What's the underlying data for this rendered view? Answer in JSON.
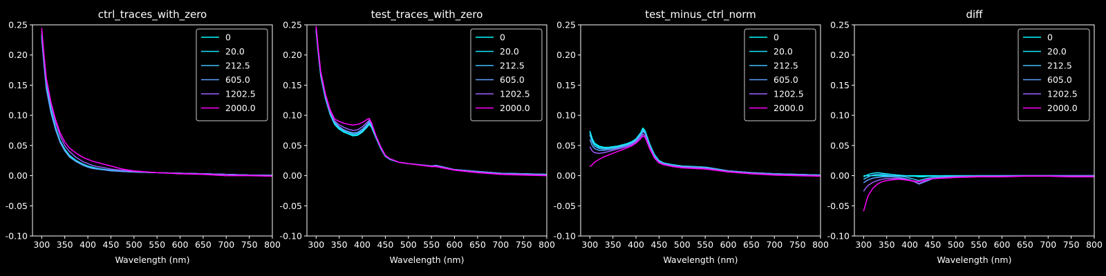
{
  "figure": {
    "background": "#000000"
  },
  "chart_data": [
    {
      "type": "line",
      "title": "ctrl_traces_with_zero",
      "xlabel": "Wavelength (nm)",
      "ylabel": "",
      "xlim": [
        280,
        800
      ],
      "ylim": [
        -0.1,
        0.25
      ],
      "xticks": [
        300,
        350,
        400,
        450,
        500,
        550,
        600,
        650,
        700,
        750,
        800
      ],
      "yticks": [
        -0.1,
        -0.05,
        0.0,
        0.05,
        0.1,
        0.15,
        0.2,
        0.25
      ],
      "legend_position": "top-right",
      "x": [
        300,
        305,
        310,
        320,
        330,
        340,
        350,
        360,
        375,
        390,
        400,
        410,
        420,
        430,
        450,
        475,
        500,
        550,
        600,
        650,
        700,
        750,
        800
      ],
      "series": [
        {
          "name": "0",
          "color": "#00ffff",
          "values": [
            0.235,
            0.19,
            0.15,
            0.11,
            0.08,
            0.058,
            0.044,
            0.034,
            0.025,
            0.019,
            0.016,
            0.014,
            0.012,
            0.011,
            0.009,
            0.007,
            0.006,
            0.005,
            0.004,
            0.003,
            0.002,
            0.001,
            0.001
          ]
        },
        {
          "name": "20.0",
          "color": "#1ae5ff",
          "values": [
            0.232,
            0.188,
            0.148,
            0.108,
            0.079,
            0.057,
            0.043,
            0.033,
            0.024,
            0.018,
            0.015,
            0.013,
            0.012,
            0.011,
            0.009,
            0.007,
            0.006,
            0.005,
            0.004,
            0.003,
            0.002,
            0.001,
            0.001
          ]
        },
        {
          "name": "212.5",
          "color": "#40c0ff",
          "values": [
            0.23,
            0.185,
            0.146,
            0.106,
            0.077,
            0.056,
            0.042,
            0.032,
            0.024,
            0.018,
            0.015,
            0.013,
            0.011,
            0.01,
            0.009,
            0.007,
            0.006,
            0.005,
            0.004,
            0.003,
            0.002,
            0.001,
            0.001
          ]
        },
        {
          "name": "605.0",
          "color": "#60a0ff",
          "values": [
            0.228,
            0.183,
            0.144,
            0.104,
            0.076,
            0.055,
            0.041,
            0.031,
            0.023,
            0.017,
            0.014,
            0.012,
            0.011,
            0.01,
            0.008,
            0.007,
            0.006,
            0.005,
            0.004,
            0.003,
            0.002,
            0.001,
            0.001
          ]
        },
        {
          "name": "1202.5",
          "color": "#a060ff",
          "values": [
            0.24,
            0.196,
            0.158,
            0.118,
            0.088,
            0.066,
            0.05,
            0.04,
            0.03,
            0.023,
            0.02,
            0.017,
            0.015,
            0.014,
            0.011,
            0.009,
            0.007,
            0.005,
            0.004,
            0.003,
            0.002,
            0.001,
            0.0
          ]
        },
        {
          "name": "2000.0",
          "color": "#ff00ff",
          "values": [
            0.245,
            0.2,
            0.162,
            0.122,
            0.093,
            0.071,
            0.056,
            0.046,
            0.037,
            0.03,
            0.027,
            0.024,
            0.022,
            0.02,
            0.016,
            0.011,
            0.008,
            0.005,
            0.003,
            0.002,
            0.0,
            0.0,
            -0.001
          ]
        }
      ]
    },
    {
      "type": "line",
      "title": "test_traces_with_zero",
      "xlabel": "Wavelength (nm)",
      "ylabel": "",
      "xlim": [
        280,
        800
      ],
      "ylim": [
        -0.1,
        0.25
      ],
      "xticks": [
        300,
        350,
        400,
        450,
        500,
        550,
        600,
        650,
        700,
        750,
        800
      ],
      "yticks": [
        -0.1,
        -0.05,
        0.0,
        0.05,
        0.1,
        0.15,
        0.2,
        0.25
      ],
      "legend_position": "top-right",
      "x": [
        300,
        305,
        310,
        320,
        330,
        340,
        350,
        360,
        370,
        380,
        390,
        400,
        410,
        415,
        420,
        430,
        440,
        450,
        460,
        480,
        500,
        550,
        560,
        600,
        650,
        700,
        750,
        800
      ],
      "series": [
        {
          "name": "0",
          "color": "#00ffff",
          "values": [
            0.24,
            0.2,
            0.165,
            0.128,
            0.102,
            0.085,
            0.077,
            0.072,
            0.069,
            0.066,
            0.067,
            0.072,
            0.08,
            0.085,
            0.08,
            0.062,
            0.045,
            0.032,
            0.027,
            0.022,
            0.02,
            0.016,
            0.017,
            0.01,
            0.007,
            0.004,
            0.003,
            0.002
          ]
        },
        {
          "name": "20.0",
          "color": "#1ae5ff",
          "values": [
            0.24,
            0.2,
            0.165,
            0.128,
            0.103,
            0.086,
            0.078,
            0.073,
            0.07,
            0.067,
            0.068,
            0.073,
            0.081,
            0.086,
            0.081,
            0.063,
            0.045,
            0.032,
            0.027,
            0.022,
            0.02,
            0.016,
            0.017,
            0.01,
            0.007,
            0.004,
            0.003,
            0.002
          ]
        },
        {
          "name": "212.5",
          "color": "#40c0ff",
          "values": [
            0.242,
            0.202,
            0.167,
            0.13,
            0.104,
            0.088,
            0.08,
            0.075,
            0.072,
            0.069,
            0.07,
            0.075,
            0.083,
            0.088,
            0.083,
            0.064,
            0.046,
            0.033,
            0.028,
            0.022,
            0.02,
            0.016,
            0.017,
            0.01,
            0.007,
            0.004,
            0.003,
            0.002
          ]
        },
        {
          "name": "605.0",
          "color": "#60a0ff",
          "values": [
            0.243,
            0.203,
            0.168,
            0.131,
            0.105,
            0.089,
            0.081,
            0.076,
            0.073,
            0.071,
            0.072,
            0.077,
            0.085,
            0.09,
            0.085,
            0.065,
            0.047,
            0.033,
            0.028,
            0.022,
            0.02,
            0.016,
            0.017,
            0.01,
            0.007,
            0.004,
            0.003,
            0.002
          ]
        },
        {
          "name": "1202.5",
          "color": "#a060ff",
          "values": [
            0.245,
            0.205,
            0.17,
            0.133,
            0.107,
            0.091,
            0.084,
            0.08,
            0.077,
            0.075,
            0.076,
            0.081,
            0.088,
            0.092,
            0.087,
            0.066,
            0.048,
            0.034,
            0.028,
            0.022,
            0.02,
            0.016,
            0.016,
            0.01,
            0.006,
            0.003,
            0.002,
            0.001
          ]
        },
        {
          "name": "2000.0",
          "color": "#ff00ff",
          "values": [
            0.248,
            0.208,
            0.173,
            0.136,
            0.11,
            0.094,
            0.09,
            0.087,
            0.085,
            0.084,
            0.085,
            0.088,
            0.093,
            0.095,
            0.088,
            0.065,
            0.047,
            0.033,
            0.028,
            0.022,
            0.02,
            0.015,
            0.015,
            0.009,
            0.005,
            0.002,
            0.001,
            0.0
          ]
        }
      ]
    },
    {
      "type": "line",
      "title": "test_minus_ctrl_norm",
      "xlabel": "Wavelength (nm)",
      "ylabel": "",
      "xlim": [
        280,
        800
      ],
      "ylim": [
        -0.1,
        0.25
      ],
      "xticks": [
        300,
        350,
        400,
        450,
        500,
        550,
        600,
        650,
        700,
        750,
        800
      ],
      "yticks": [
        -0.1,
        -0.05,
        0.0,
        0.05,
        0.1,
        0.15,
        0.2,
        0.25
      ],
      "legend_position": "top-right",
      "x": [
        300,
        305,
        310,
        320,
        330,
        340,
        350,
        360,
        370,
        380,
        390,
        400,
        410,
        415,
        420,
        430,
        440,
        450,
        460,
        480,
        500,
        550,
        560,
        600,
        650,
        700,
        750,
        800
      ],
      "series": [
        {
          "name": "0",
          "color": "#00ffff",
          "values": [
            0.074,
            0.062,
            0.054,
            0.049,
            0.047,
            0.047,
            0.048,
            0.049,
            0.051,
            0.053,
            0.056,
            0.061,
            0.071,
            0.079,
            0.074,
            0.052,
            0.035,
            0.025,
            0.021,
            0.018,
            0.016,
            0.014,
            0.013,
            0.008,
            0.005,
            0.003,
            0.002,
            0.001
          ]
        },
        {
          "name": "20.0",
          "color": "#1ae5ff",
          "values": [
            0.072,
            0.06,
            0.052,
            0.047,
            0.046,
            0.046,
            0.047,
            0.048,
            0.05,
            0.052,
            0.055,
            0.06,
            0.07,
            0.077,
            0.073,
            0.051,
            0.034,
            0.025,
            0.021,
            0.018,
            0.016,
            0.014,
            0.013,
            0.008,
            0.005,
            0.003,
            0.002,
            0.001
          ]
        },
        {
          "name": "212.5",
          "color": "#40c0ff",
          "values": [
            0.068,
            0.056,
            0.049,
            0.045,
            0.044,
            0.045,
            0.046,
            0.047,
            0.049,
            0.051,
            0.054,
            0.059,
            0.068,
            0.075,
            0.071,
            0.05,
            0.033,
            0.024,
            0.02,
            0.017,
            0.015,
            0.014,
            0.013,
            0.008,
            0.005,
            0.003,
            0.002,
            0.001
          ]
        },
        {
          "name": "605.0",
          "color": "#60a0ff",
          "values": [
            0.06,
            0.05,
            0.045,
            0.042,
            0.042,
            0.043,
            0.044,
            0.046,
            0.048,
            0.05,
            0.053,
            0.058,
            0.067,
            0.073,
            0.07,
            0.049,
            0.032,
            0.023,
            0.02,
            0.017,
            0.015,
            0.013,
            0.012,
            0.008,
            0.005,
            0.003,
            0.002,
            0.001
          ]
        },
        {
          "name": "1202.5",
          "color": "#a060ff",
          "values": [
            0.048,
            0.041,
            0.038,
            0.037,
            0.038,
            0.04,
            0.042,
            0.044,
            0.046,
            0.048,
            0.051,
            0.056,
            0.064,
            0.069,
            0.066,
            0.046,
            0.03,
            0.022,
            0.019,
            0.016,
            0.014,
            0.012,
            0.011,
            0.007,
            0.004,
            0.002,
            0.001,
            0.0
          ]
        },
        {
          "name": "2000.0",
          "color": "#ff00ff",
          "values": [
            0.015,
            0.018,
            0.022,
            0.027,
            0.031,
            0.034,
            0.037,
            0.04,
            0.043,
            0.046,
            0.049,
            0.054,
            0.061,
            0.066,
            0.063,
            0.044,
            0.029,
            0.021,
            0.018,
            0.015,
            0.013,
            0.011,
            0.01,
            0.006,
            0.003,
            0.001,
            0.0,
            -0.001
          ]
        }
      ]
    },
    {
      "type": "line",
      "title": "diff",
      "xlabel": "Wavelength (nm)",
      "ylabel": "",
      "xlim": [
        280,
        800
      ],
      "ylim": [
        -0.1,
        0.25
      ],
      "xticks": [
        300,
        350,
        400,
        450,
        500,
        550,
        600,
        650,
        700,
        750,
        800
      ],
      "yticks": [
        -0.1,
        -0.05,
        0.0,
        0.05,
        0.1,
        0.15,
        0.2,
        0.25
      ],
      "legend_position": "top-right",
      "x": [
        300,
        305,
        310,
        320,
        330,
        340,
        350,
        360,
        375,
        390,
        400,
        410,
        420,
        430,
        440,
        450,
        475,
        500,
        550,
        600,
        650,
        700,
        750,
        800
      ],
      "series": [
        {
          "name": "0",
          "color": "#00ffff",
          "values": [
            0.0,
            0.0,
            0.0,
            0.0,
            0.0,
            0.0,
            0.0,
            0.0,
            0.0,
            0.0,
            0.0,
            0.0,
            0.0,
            0.0,
            0.0,
            0.0,
            0.0,
            0.0,
            0.0,
            0.0,
            0.0,
            0.0,
            0.0,
            0.0
          ]
        },
        {
          "name": "20.0",
          "color": "#1ae5ff",
          "values": [
            -0.002,
            0.0,
            0.002,
            0.004,
            0.005,
            0.004,
            0.003,
            0.002,
            0.001,
            0.0,
            -0.001,
            -0.001,
            -0.002,
            -0.002,
            -0.001,
            -0.001,
            0.0,
            0.0,
            0.0,
            0.0,
            0.0,
            0.0,
            0.0,
            0.0
          ]
        },
        {
          "name": "212.5",
          "color": "#40c0ff",
          "values": [
            -0.006,
            -0.004,
            -0.002,
            0.001,
            0.002,
            0.002,
            0.001,
            0.0,
            -0.001,
            -0.002,
            -0.004,
            -0.006,
            -0.008,
            -0.006,
            -0.004,
            -0.003,
            -0.002,
            -0.001,
            0.0,
            0.0,
            0.0,
            0.0,
            0.0,
            0.0
          ]
        },
        {
          "name": "605.0",
          "color": "#60a0ff",
          "values": [
            -0.012,
            -0.009,
            -0.007,
            -0.004,
            -0.003,
            -0.002,
            -0.002,
            -0.002,
            -0.003,
            -0.005,
            -0.007,
            -0.01,
            -0.014,
            -0.011,
            -0.008,
            -0.005,
            -0.003,
            -0.002,
            -0.001,
            0.0,
            0.0,
            0.0,
            0.0,
            0.0
          ]
        },
        {
          "name": "1202.5",
          "color": "#a060ff",
          "values": [
            -0.026,
            -0.02,
            -0.016,
            -0.011,
            -0.008,
            -0.006,
            -0.005,
            -0.005,
            -0.005,
            -0.006,
            -0.008,
            -0.01,
            -0.013,
            -0.01,
            -0.007,
            -0.005,
            -0.003,
            -0.002,
            -0.001,
            -0.001,
            0.0,
            0.0,
            0.0,
            0.0
          ]
        },
        {
          "name": "2000.0",
          "color": "#ff00ff",
          "values": [
            -0.059,
            -0.045,
            -0.033,
            -0.021,
            -0.014,
            -0.01,
            -0.008,
            -0.007,
            -0.006,
            -0.007,
            -0.008,
            -0.009,
            -0.01,
            -0.008,
            -0.006,
            -0.005,
            -0.004,
            -0.003,
            -0.002,
            -0.002,
            -0.001,
            -0.001,
            -0.002,
            -0.002
          ]
        }
      ]
    }
  ]
}
